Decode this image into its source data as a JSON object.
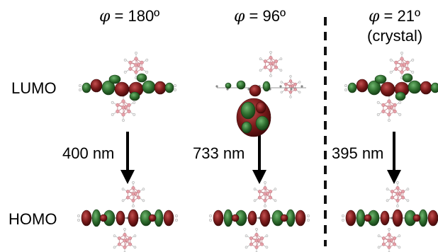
{
  "row_labels": {
    "lumo": "LUMO",
    "homo": "HOMO"
  },
  "phi_symbol": "φ",
  "columns": [
    {
      "angle": " = 180º",
      "note": "",
      "wavelength": "400 nm"
    },
    {
      "angle": " = 96º",
      "note": "",
      "wavelength": "733 nm"
    },
    {
      "angle": " = 21º",
      "note": "(crystal)",
      "wavelength": "395 nm"
    }
  ],
  "colors": {
    "orbital_red": "#7a1a1a",
    "orbital_green": "#2f6e2f",
    "boron_pink": "#e8a0a8",
    "hydrogen_white": "#e6e6e6",
    "arrow": "#000000",
    "divider": "#111111"
  }
}
